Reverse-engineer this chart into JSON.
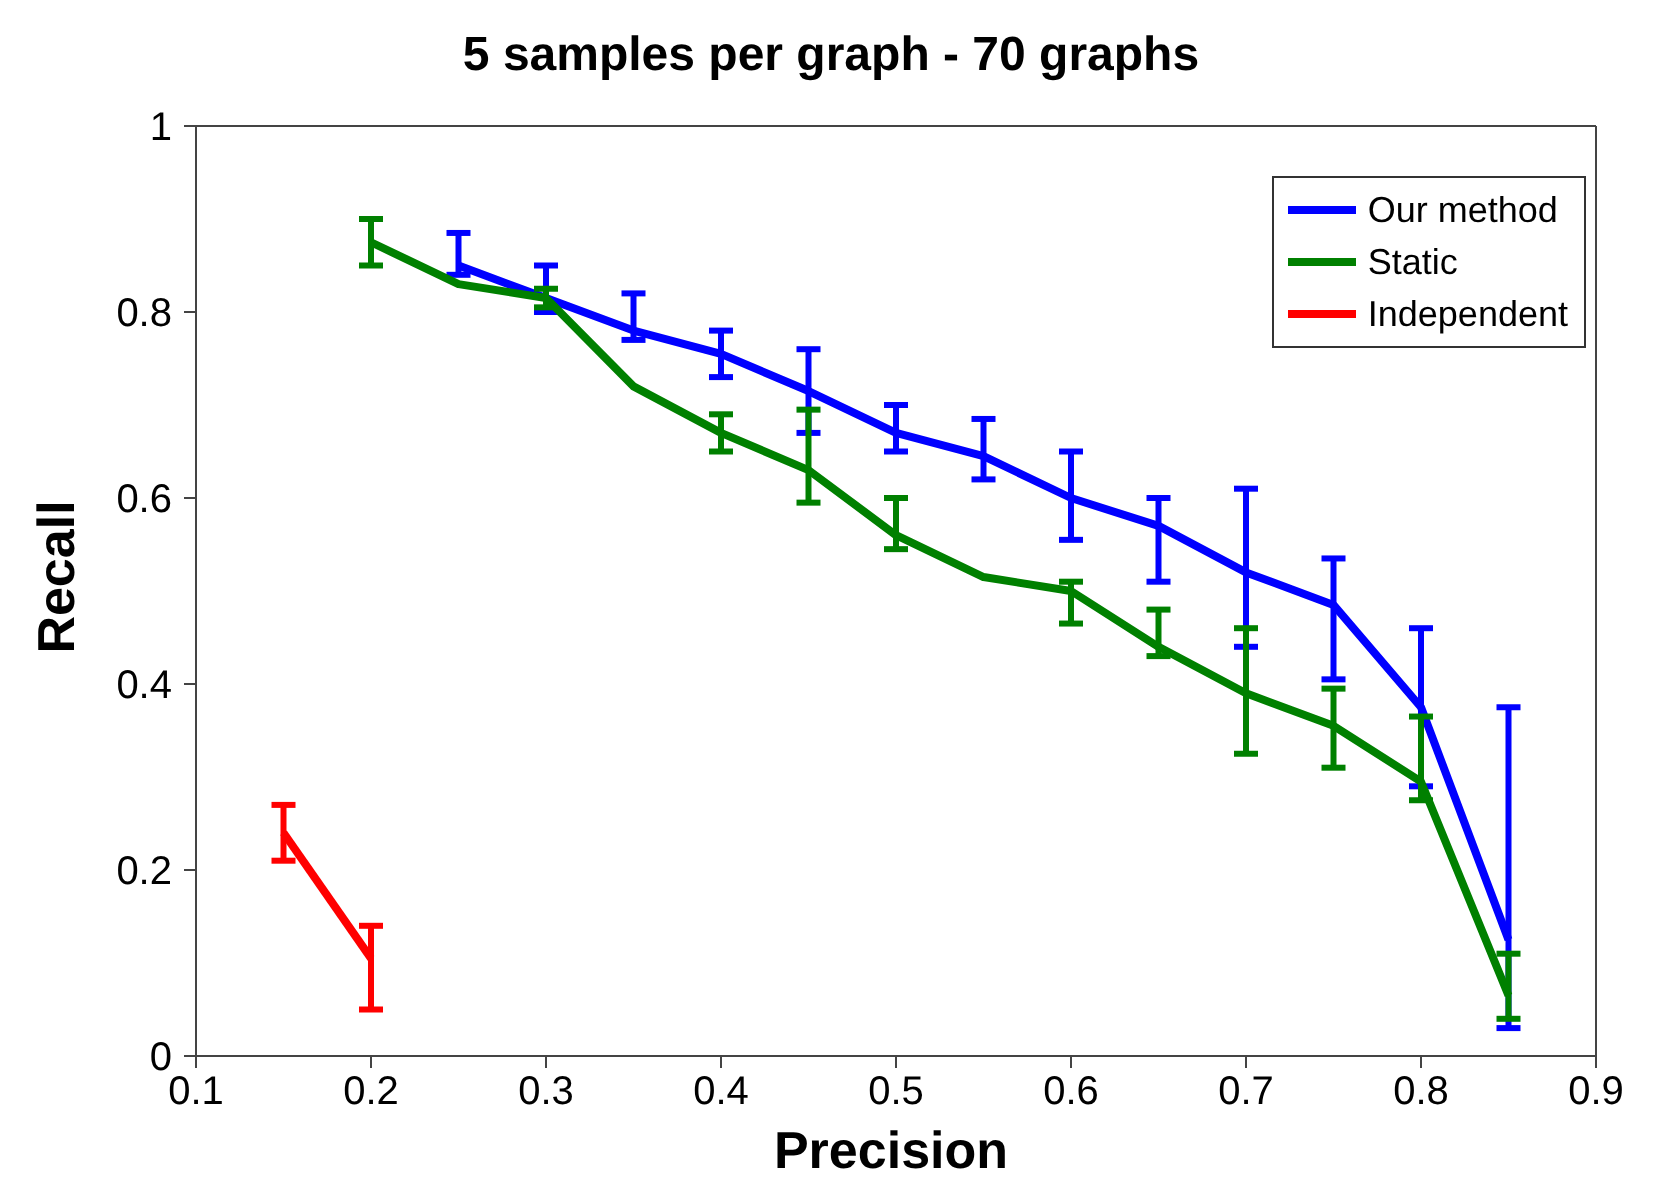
{
  "chart_data": {
    "type": "line",
    "title": "5 samples per graph - 70 graphs",
    "xlabel": "Precision",
    "ylabel": "Recall",
    "xlim": [
      0.1,
      0.9
    ],
    "xticks": [
      0.1,
      0.2,
      0.3,
      0.4,
      0.5,
      0.6,
      0.7,
      0.8,
      0.9
    ],
    "ylim": [
      0,
      1
    ],
    "yticks": [
      0,
      0.2,
      0.4,
      0.6,
      0.8,
      1
    ],
    "grid": false,
    "legend": "top right",
    "marker": "none",
    "line_style": "solid",
    "series": [
      {
        "name": "Our method",
        "color": "#0000ff",
        "x": [
          0.25,
          0.3,
          0.35,
          0.4,
          0.45,
          0.5,
          0.55,
          0.6,
          0.65,
          0.7,
          0.75,
          0.8,
          0.85
        ],
        "values": [
          0.85,
          0.815,
          0.78,
          0.755,
          0.715,
          0.67,
          0.645,
          0.6,
          0.57,
          0.52,
          0.485,
          0.375,
          0.125
        ],
        "errors": [
          [
            0.84,
            0.885
          ],
          [
            0.8,
            0.85
          ],
          [
            0.77,
            0.82
          ],
          [
            0.73,
            0.78
          ],
          [
            0.67,
            0.76
          ],
          [
            0.65,
            0.7
          ],
          [
            0.62,
            0.685
          ],
          [
            0.555,
            0.65
          ],
          [
            0.51,
            0.6
          ],
          [
            0.44,
            0.61
          ],
          [
            0.405,
            0.535
          ],
          [
            0.29,
            0.46
          ],
          [
            0.03,
            0.375
          ]
        ]
      },
      {
        "name": "Static",
        "color": "#008000",
        "x": [
          0.2,
          0.25,
          0.3,
          0.35,
          0.4,
          0.45,
          0.5,
          0.55,
          0.6,
          0.65,
          0.7,
          0.75,
          0.8,
          0.85
        ],
        "values": [
          0.875,
          0.83,
          0.815,
          0.72,
          0.67,
          0.63,
          0.56,
          0.515,
          0.5,
          0.44,
          0.39,
          0.355,
          0.295,
          0.065
        ],
        "errors": [
          [
            0.85,
            0.9
          ],
          null,
          [
            0.805,
            0.825
          ],
          null,
          [
            0.65,
            0.69
          ],
          [
            0.595,
            0.695
          ],
          [
            0.545,
            0.6
          ],
          null,
          [
            0.465,
            0.51
          ],
          [
            0.43,
            0.48
          ],
          [
            0.325,
            0.46
          ],
          [
            0.31,
            0.395
          ],
          [
            0.275,
            0.365
          ],
          [
            0.04,
            0.11
          ]
        ]
      },
      {
        "name": "Independent",
        "color": "#ff0000",
        "x": [
          0.15,
          0.2
        ],
        "values": [
          0.24,
          0.105
        ],
        "errors": [
          [
            0.21,
            0.27
          ],
          [
            0.05,
            0.14
          ]
        ]
      }
    ]
  }
}
